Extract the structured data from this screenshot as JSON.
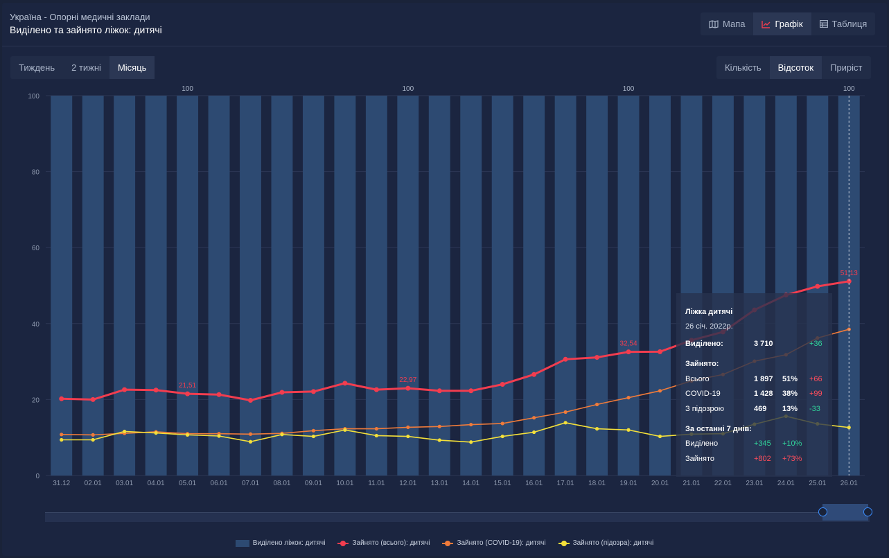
{
  "header": {
    "subtitle": "Україна - Опорні медичні заклади",
    "title": "Виділено та зайнято ліжок: дитячі"
  },
  "view_tabs": [
    {
      "label": "Мапа",
      "icon": "map-icon",
      "active": false
    },
    {
      "label": "Графік",
      "icon": "line-chart-icon",
      "active": true
    },
    {
      "label": "Таблиця",
      "icon": "table-icon",
      "active": false
    }
  ],
  "period_tabs": [
    {
      "label": "Тиждень",
      "active": false
    },
    {
      "label": "2 тижні",
      "active": false
    },
    {
      "label": "Місяць",
      "active": true
    }
  ],
  "mode_tabs": [
    {
      "label": "Кількість",
      "active": false
    },
    {
      "label": "Відсоток",
      "active": true
    },
    {
      "label": "Приріст",
      "active": false
    }
  ],
  "tooltip": {
    "title": "Ліжка дитячі",
    "date": "26 січ. 2022р.",
    "allocated_label": "Виділено:",
    "allocated_value": "3 710",
    "allocated_delta": "+36",
    "occupied_label": "Зайнято:",
    "rows": [
      {
        "label": "Всього",
        "value": "1 897",
        "pct": "51%",
        "delta": "+66"
      },
      {
        "label": "COVID-19",
        "value": "1 428",
        "pct": "38%",
        "delta": "+99"
      },
      {
        "label": "З підозрою",
        "value": "469",
        "pct": "13%",
        "delta": "-33"
      }
    ],
    "week_label": "За останні 7 днів:",
    "week_rows": [
      {
        "label": "Виділено",
        "value": "+345",
        "pct": "+10%"
      },
      {
        "label": "Зайнято",
        "value": "+802",
        "pct": "+73%"
      }
    ]
  },
  "colors": {
    "bar": "#2d4a72",
    "total": "#f23d4f",
    "covid": "#f07b3a",
    "suspect": "#f4e03a",
    "grid": "#2c3755",
    "axis_text": "#8e99ae"
  },
  "chart_data": {
    "type": "bar+line",
    "categories": [
      "31.12",
      "02.01",
      "03.01",
      "04.01",
      "05.01",
      "06.01",
      "07.01",
      "08.01",
      "09.01",
      "10.01",
      "11.01",
      "12.01",
      "13.01",
      "14.01",
      "15.01",
      "16.01",
      "17.01",
      "18.01",
      "19.01",
      "20.01",
      "21.01",
      "22.01",
      "23.01",
      "24.01",
      "25.01",
      "26.01"
    ],
    "ylim": [
      0,
      100
    ],
    "yticks": [
      0,
      20,
      40,
      60,
      80,
      100
    ],
    "series": [
      {
        "name": "Виділено ліжок: дитячі",
        "kind": "bar",
        "values": [
          100,
          100,
          100,
          100,
          100,
          100,
          100,
          100,
          100,
          100,
          100,
          100,
          100,
          100,
          100,
          100,
          100,
          100,
          100,
          100,
          100,
          100,
          100,
          100,
          100,
          100
        ]
      },
      {
        "name": "Зайнято (всього): дитячі",
        "kind": "line",
        "values": [
          20.2,
          20.0,
          22.6,
          22.5,
          21.51,
          21.3,
          19.8,
          21.9,
          22.1,
          24.3,
          22.6,
          22.97,
          22.3,
          22.3,
          24.0,
          26.6,
          30.6,
          31.1,
          32.54,
          32.6,
          35.6,
          37.8,
          43.6,
          47.5,
          49.8,
          51.13
        ]
      },
      {
        "name": "Зайнято (COVID-19): дитячі",
        "kind": "line",
        "values": [
          10.8,
          10.7,
          11.1,
          11.5,
          11.0,
          11.0,
          10.9,
          11.1,
          11.8,
          12.3,
          12.3,
          12.7,
          12.9,
          13.4,
          13.7,
          15.2,
          16.7,
          18.7,
          20.5,
          22.3,
          24.9,
          26.6,
          30.1,
          31.8,
          36.2,
          38.49
        ]
      },
      {
        "name": "Зайнято (підозра): дитячі",
        "kind": "line",
        "values": [
          9.4,
          9.4,
          11.6,
          11.2,
          10.7,
          10.4,
          8.9,
          10.8,
          10.3,
          12.0,
          10.5,
          10.3,
          9.3,
          8.8,
          10.3,
          11.4,
          13.9,
          12.3,
          12.0,
          10.3,
          10.9,
          11.0,
          13.5,
          15.6,
          13.6,
          12.64
        ]
      }
    ],
    "bar_labels": [
      {
        "category": "05.01",
        "text": "100"
      },
      {
        "category": "12.01",
        "text": "100"
      },
      {
        "category": "19.01",
        "text": "100"
      },
      {
        "category": "26.01",
        "text": "100"
      }
    ],
    "point_labels": [
      {
        "category": "05.01",
        "text": "21,51"
      },
      {
        "category": "12.01",
        "text": "22,97"
      },
      {
        "category": "19.01",
        "text": "32,54"
      },
      {
        "category": "26.01",
        "text": "51,13"
      }
    ],
    "legend": [
      "Виділено ліжок: дитячі",
      "Зайнято (всього): дитячі",
      "Зайнято (COVID-19): дитячі",
      "Зайнято (підозра): дитячі"
    ]
  }
}
